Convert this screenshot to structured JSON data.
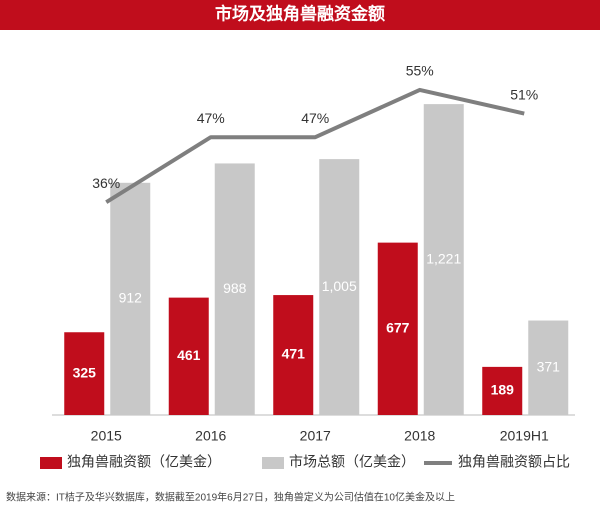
{
  "chart_data": {
    "type": "bar",
    "title": "市场及独角兽融资金额",
    "categories": [
      "2015",
      "2016",
      "2017",
      "2018",
      "2019H1"
    ],
    "series": [
      {
        "name": "独角兽融资额（亿美金）",
        "type": "bar",
        "color": "#c00d1c",
        "values": [
          325,
          461,
          471,
          677,
          189
        ]
      },
      {
        "name": "市场总额（亿美金）",
        "type": "bar",
        "color": "#c8c8c8",
        "values": [
          912,
          988,
          1005,
          1221,
          371
        ],
        "value_labels": [
          "912",
          "988",
          "1,005",
          "1,221",
          "371"
        ]
      },
      {
        "name": "独角兽融资额占比",
        "type": "line",
        "axis": "y2",
        "color": "#7f7f7f",
        "values": [
          36,
          47,
          47,
          55,
          51
        ],
        "value_labels": [
          "36%",
          "47%",
          "47%",
          "55%",
          "51%"
        ]
      }
    ],
    "ylim": [
      0,
      1300
    ],
    "y2lim": [
      0,
      56
    ],
    "source": "数据来源：IT桔子及华兴数据库，数据截至2019年6月27日，独角兽定义为公司估值在10亿美金及以上"
  }
}
